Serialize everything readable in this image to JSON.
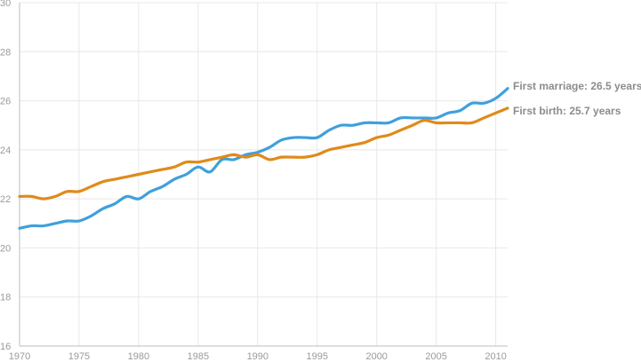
{
  "chart_data": {
    "type": "line",
    "title": "",
    "xlabel": "",
    "ylabel": "",
    "xlim": [
      1970,
      2011
    ],
    "ylim": [
      16,
      30
    ],
    "x_ticks": [
      1970,
      1975,
      1980,
      1985,
      1990,
      1995,
      2000,
      2005,
      2010
    ],
    "y_ticks": [
      16,
      18,
      20,
      22,
      24,
      26,
      28,
      30
    ],
    "grid": true,
    "series": [
      {
        "name": "First marriage",
        "label": "First marriage: 26.5 years",
        "color": "#3fa0dc",
        "x": [
          1970,
          1971,
          1972,
          1973,
          1974,
          1975,
          1976,
          1977,
          1978,
          1979,
          1980,
          1981,
          1982,
          1983,
          1984,
          1985,
          1986,
          1987,
          1988,
          1989,
          1990,
          1991,
          1992,
          1993,
          1994,
          1995,
          1996,
          1997,
          1998,
          1999,
          2000,
          2001,
          2002,
          2003,
          2004,
          2005,
          2006,
          2007,
          2008,
          2009,
          2010,
          2011
        ],
        "values": [
          20.8,
          20.9,
          20.9,
          21.0,
          21.1,
          21.1,
          21.3,
          21.6,
          21.8,
          22.1,
          22.0,
          22.3,
          22.5,
          22.8,
          23.0,
          23.3,
          23.1,
          23.6,
          23.6,
          23.8,
          23.9,
          24.1,
          24.4,
          24.5,
          24.5,
          24.5,
          24.8,
          25.0,
          25.0,
          25.1,
          25.1,
          25.1,
          25.3,
          25.3,
          25.3,
          25.3,
          25.5,
          25.6,
          25.9,
          25.9,
          26.1,
          26.5
        ]
      },
      {
        "name": "First birth",
        "label": "First birth: 25.7 years",
        "color": "#e08a1a",
        "x": [
          1970,
          1971,
          1972,
          1973,
          1974,
          1975,
          1976,
          1977,
          1978,
          1979,
          1980,
          1981,
          1982,
          1983,
          1984,
          1985,
          1986,
          1987,
          1988,
          1989,
          1990,
          1991,
          1992,
          1993,
          1994,
          1995,
          1996,
          1997,
          1998,
          1999,
          2000,
          2001,
          2002,
          2003,
          2004,
          2005,
          2006,
          2007,
          2008,
          2009,
          2010,
          2011
        ],
        "values": [
          22.1,
          22.1,
          22.0,
          22.1,
          22.3,
          22.3,
          22.5,
          22.7,
          22.8,
          22.9,
          23.0,
          23.1,
          23.2,
          23.3,
          23.5,
          23.5,
          23.6,
          23.7,
          23.8,
          23.7,
          23.8,
          23.6,
          23.7,
          23.7,
          23.7,
          23.8,
          24.0,
          24.1,
          24.2,
          24.3,
          24.5,
          24.6,
          24.8,
          25.0,
          25.2,
          25.1,
          25.1,
          25.1,
          25.1,
          25.3,
          25.5,
          25.7
        ]
      }
    ]
  }
}
